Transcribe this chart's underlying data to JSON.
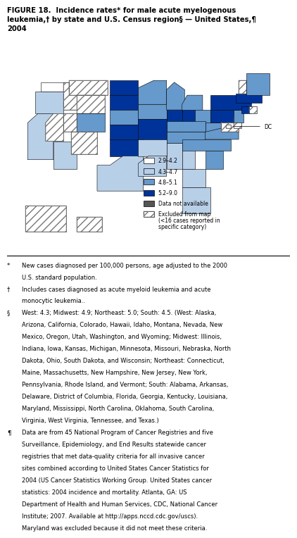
{
  "title_line1": "FIGURE 18.  Incidence rates* for male acute myelogenous",
  "title_line2": "leukemia,† by state and U.S. Census region§ — United States,¶",
  "title_line3": "2004",
  "state_categories": {
    "WA": "2.9-4.2",
    "OR": "4.3-4.7",
    "CA": "4.3-4.7",
    "NV": "excluded",
    "ID": "excluded",
    "MT": "excluded",
    "WY": "excluded",
    "UT": "excluded",
    "AZ": "4.3-4.7",
    "CO": "4.8-5.1",
    "NM": "excluded",
    "ND": "5.2-9.0",
    "SD": "5.2-9.0",
    "NE": "4.8-5.1",
    "KS": "5.2-9.0",
    "MN": "4.8-5.1",
    "IA": "4.8-5.1",
    "MO": "5.2-9.0",
    "WI": "4.8-5.1",
    "IL": "5.2-9.0",
    "MI": "4.8-5.1",
    "IN": "5.2-9.0",
    "OH": "4.8-5.1",
    "TX": "4.3-4.7",
    "OK": "5.2-9.0",
    "AR": "4.3-4.7",
    "LA": "4.3-4.7",
    "MS": "4.3-4.7",
    "AL": "4.3-4.7",
    "TN": "4.8-5.1",
    "KY": "4.8-5.1",
    "GA": "4.3-4.7",
    "FL": "4.3-4.7",
    "SC": "4.8-5.1",
    "NC": "4.8-5.1",
    "VA": "4.8-5.1",
    "WV": "4.8-5.1",
    "MD": "excluded",
    "DE": "excluded",
    "PA": "5.2-9.0",
    "NJ": "4.8-5.1",
    "NY": "5.2-9.0",
    "CT": "5.2-9.0",
    "RI": "excluded",
    "MA": "5.2-9.0",
    "VT": "excluded",
    "NH": "excluded",
    "ME": "4.8-5.1",
    "AK": "excluded",
    "HI": "excluded",
    "DC": "excluded"
  },
  "color_map": {
    "2.9-4.2": "#ffffff",
    "4.3-4.7": "#b8cfe8",
    "4.8-5.1": "#6699cc",
    "5.2-9.0": "#003399",
    "unavailable": "#555555",
    "excluded": "#ffffff"
  },
  "legend_items": [
    {
      "label": "2.9–4.2",
      "color": "#ffffff",
      "hatch": false
    },
    {
      "label": "4.3–4.7",
      "color": "#b8cfe8",
      "hatch": false
    },
    {
      "label": "4.8–5.1",
      "color": "#6699cc",
      "hatch": false
    },
    {
      "label": "5.2–9.0",
      "color": "#003399",
      "hatch": false
    },
    {
      "label": "Data not available",
      "color": "#555555",
      "hatch": false
    },
    {
      "label": "Excluded from map\n(<16 cases reported in\nspecific category)",
      "color": "#ffffff",
      "hatch": true
    }
  ],
  "footnotes": [
    {
      "sym": "*",
      "text": "New cases diagnosed per 100,000 persons, age adjusted to the 2000\nU.S. standard population."
    },
    {
      "sym": "†",
      "text": "Includes cases diagnosed as acute myeloid leukemia and acute\nmonocytic leukemia.."
    },
    {
      "sym": "§",
      "text": "West: 4.3; Midwest: 4.9; Northeast: 5.0; South: 4.5. (West: Alaska,\nArizona, California, Colorado, Hawaii, Idaho, Montana, Nevada, New\nMexico, Oregon, Utah, Washington, and Wyoming; Midwest: Illinois,\nIndiana, Iowa, Kansas, Michigan, Minnesota, Missouri, Nebraska, North\nDakota, Ohio, South Dakota, and Wisconsin; Northeast: Connecticut,\nMaine, Massachusetts, New Hampshire, New Jersey, New York,\nPennsylvania, Rhode Island, and Vermont; South: Alabama, Arkansas,\nDelaware, District of Columbia, Florida, Georgia, Kentucky, Louisiana,\nMaryland, Mississippi, North Carolina, Oklahoma, South Carolina,\nVirginia, West Virginia, Tennessee, and Texas.)"
    },
    {
      "sym": "¶",
      "text": "Data are from 45 National Program of Cancer Registries and five\nSurveillance, Epidemiology, and End Results statewide cancer\nregistries that met data-quality criteria for all invasive cancer\nsites combined according to United States Cancer Statistics for\n2004 (US Cancer Statistics Working Group. United States cancer\nstatistics: 2004 incidence and mortality. Atlanta, GA: US\nDepartment of Health and Human Services, CDC, National Cancer\nInstitute; 2007. Available at http://apps.nccd.cdc.gov/uscs).\nMaryland was excluded because it did not meet these criteria."
    }
  ],
  "background_color": "#ffffff",
  "fig_width": 4.19,
  "fig_height": 6.97
}
